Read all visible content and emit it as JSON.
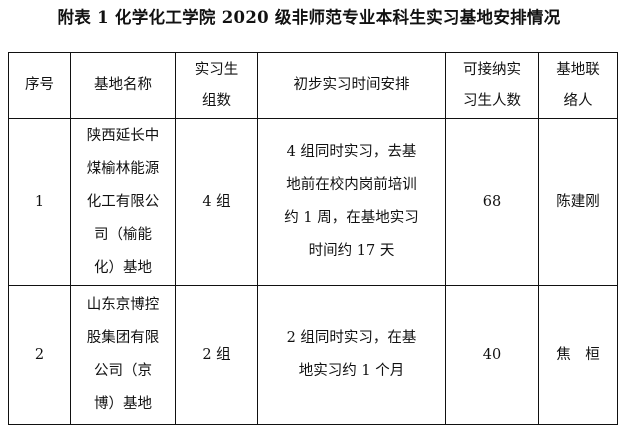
{
  "title": "附表 1  化学化工学院 2020 级非师范专业本科生实习基地安排情况",
  "headers": [
    [
      "序号"
    ],
    [
      "基地名称"
    ],
    [
      "实习生",
      "组数"
    ],
    [
      "初步实习时间安排"
    ],
    [
      "可接纳实",
      "习生人数"
    ],
    [
      "基地联",
      "络人"
    ]
  ],
  "rows": [
    {
      "no": "1",
      "name": [
        "陕西延长中",
        "煤榆林能源",
        "化工有限公",
        "司（榆能",
        "化）基地"
      ],
      "groups": "4 组",
      "schedule": [
        "4 组同时实习，去基",
        "地前在校内岗前培训",
        "约 1 周，在基地实习",
        "时间约 17 天"
      ],
      "capacity": "68",
      "contact": "陈建刚"
    },
    {
      "no": "2",
      "name": [
        "山东京博控",
        "股集团有限",
        "公司（京",
        "博）基地"
      ],
      "groups": "2 组",
      "schedule": [
        "2 组同时实习，在基",
        "地实习约 1 个月"
      ],
      "capacity": "40",
      "contact": "焦　桓"
    }
  ]
}
